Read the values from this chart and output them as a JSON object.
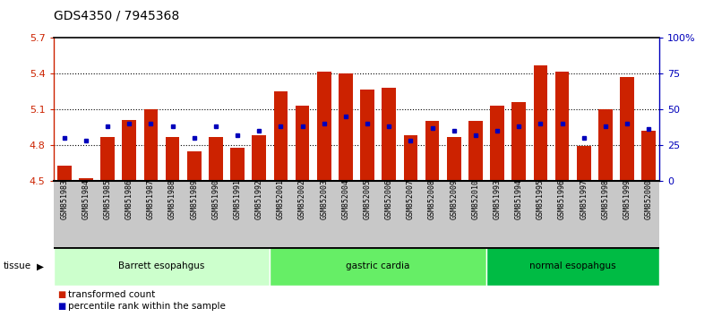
{
  "title": "GDS4350 / 7945368",
  "samples": [
    "GSM851983",
    "GSM851984",
    "GSM851985",
    "GSM851986",
    "GSM851987",
    "GSM851988",
    "GSM851989",
    "GSM851990",
    "GSM851991",
    "GSM851992",
    "GSM852001",
    "GSM852002",
    "GSM852003",
    "GSM852004",
    "GSM852005",
    "GSM852006",
    "GSM852007",
    "GSM852008",
    "GSM852009",
    "GSM852010",
    "GSM851993",
    "GSM851994",
    "GSM851995",
    "GSM851996",
    "GSM851997",
    "GSM851998",
    "GSM851999",
    "GSM852000"
  ],
  "bar_values": [
    4.63,
    4.52,
    4.87,
    5.01,
    5.1,
    4.87,
    4.75,
    4.87,
    4.78,
    4.88,
    5.25,
    5.13,
    5.42,
    5.4,
    5.27,
    5.28,
    4.88,
    5.0,
    4.87,
    5.0,
    5.13,
    5.16,
    5.47,
    5.42,
    4.79,
    5.1,
    5.37,
    4.92
  ],
  "percentile_ranks": [
    30,
    28,
    38,
    40,
    40,
    38,
    30,
    38,
    32,
    35,
    38,
    38,
    40,
    45,
    40,
    38,
    28,
    37,
    35,
    32,
    35,
    38,
    40,
    40,
    30,
    38,
    40,
    36
  ],
  "groups": [
    {
      "label": "Barrett esopahgus",
      "start": 0,
      "end": 9,
      "color": "#ccffcc"
    },
    {
      "label": "gastric cardia",
      "start": 10,
      "end": 19,
      "color": "#66ee66"
    },
    {
      "label": "normal esopahgus",
      "start": 20,
      "end": 27,
      "color": "#00bb44"
    }
  ],
  "ymin": 4.5,
  "ymax": 5.7,
  "yticks": [
    4.5,
    4.8,
    5.1,
    5.4,
    5.7
  ],
  "bar_color": "#cc2200",
  "blue_color": "#0000bb",
  "right_yticks": [
    0,
    25,
    50,
    75,
    100
  ],
  "right_yticklabels": [
    "0",
    "25",
    "50",
    "75",
    "100%"
  ],
  "bg_color": "#ffffff",
  "plot_bg": "#ffffff",
  "xticklabel_bg": "#c8c8c8",
  "title_fontsize": 10,
  "legend_items": [
    {
      "label": "transformed count",
      "color": "#cc2200"
    },
    {
      "label": "percentile rank within the sample",
      "color": "#0000bb"
    }
  ]
}
